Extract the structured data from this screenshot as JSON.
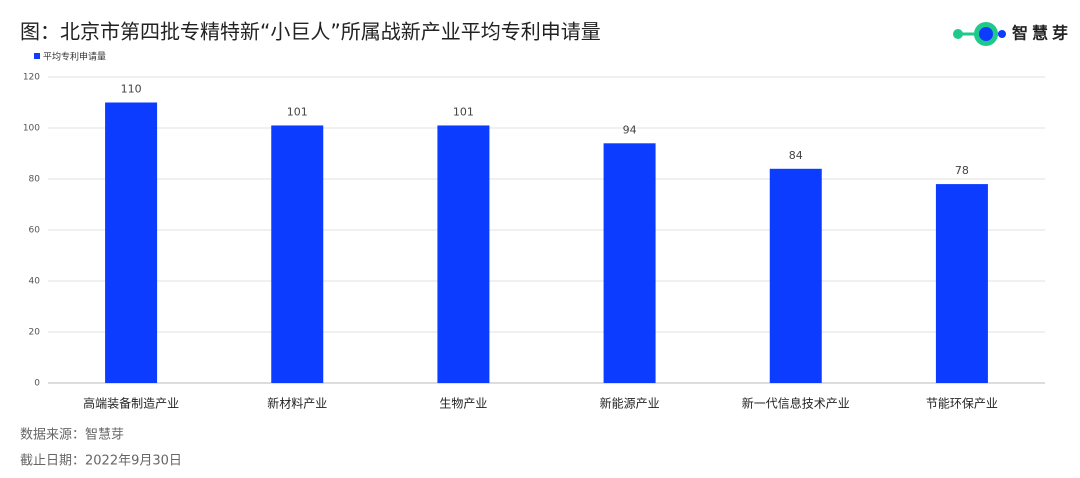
{
  "chart_data": {
    "type": "bar",
    "title": "图：北京市第四批专精特新“小巨人”所属战新产业平均专利申请量",
    "brand": "智慧芽",
    "series": [
      {
        "name": "平均专利申请量",
        "color": "#0c3cff",
        "values": [
          110,
          101,
          101,
          94,
          84,
          78
        ]
      }
    ],
    "categories": [
      "高端装备制造产业",
      "新材料产业",
      "生物产业",
      "新能源产业",
      "新一代信息技术产业",
      "节能环保产业"
    ],
    "ylim": [
      0,
      120
    ],
    "yticks": [
      0,
      20,
      40,
      60,
      80,
      100,
      120
    ],
    "grid": true,
    "source": "数据来源：智慧芽",
    "date_note": "截止日期：2022年9月30日"
  }
}
